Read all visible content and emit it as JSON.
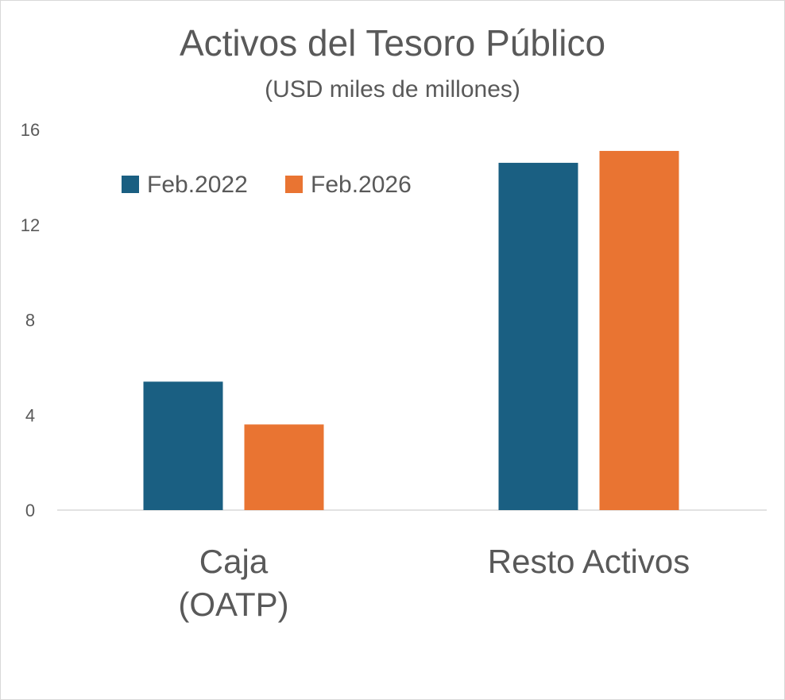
{
  "chart_data": {
    "type": "bar",
    "title": "Activos del Tesoro Público",
    "subtitle": "(USD miles de millones)",
    "categories": [
      [
        "Caja",
        "(OATP)"
      ],
      [
        "Resto Activos"
      ]
    ],
    "series": [
      {
        "name": "Feb.2022",
        "color": "#1a5f82",
        "values": [
          5.4,
          14.6
        ]
      },
      {
        "name": "Feb.2026",
        "color": "#e97432",
        "values": [
          3.6,
          15.1
        ]
      }
    ],
    "yticks": [
      0,
      4,
      8,
      12,
      16
    ],
    "ylim": [
      0,
      16
    ],
    "grid": false,
    "legend_position": "top-left"
  }
}
